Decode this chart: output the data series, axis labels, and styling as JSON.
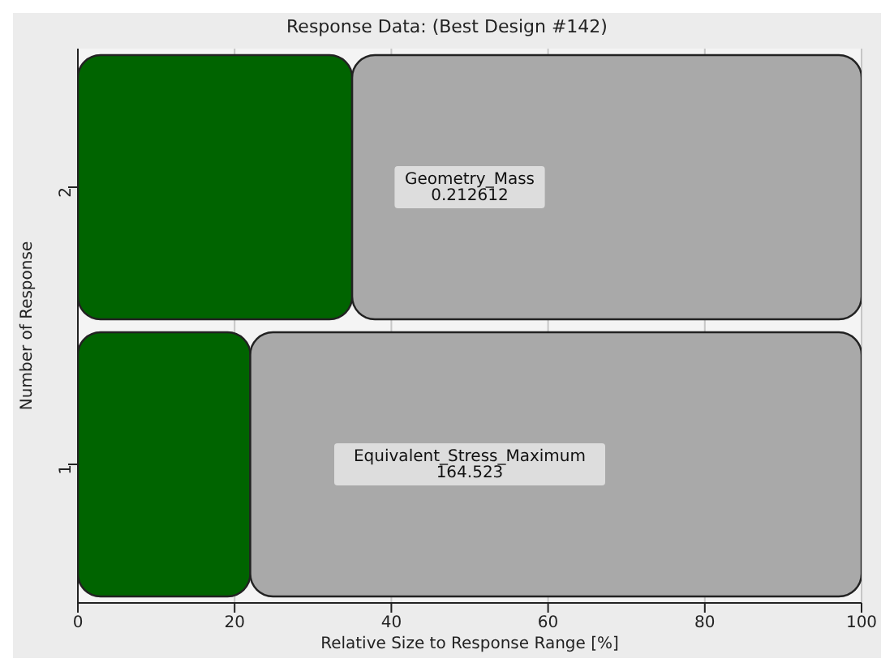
{
  "chart_data": {
    "type": "bar",
    "orientation": "horizontal",
    "stacked": true,
    "title": "Response Data: (Best Design #142)",
    "xlabel": "Relative Size to Response Range [%]",
    "ylabel": "Number of Response",
    "categories": [
      "2",
      "1"
    ],
    "series": [
      {
        "color": "#006400",
        "values": [
          35,
          22
        ]
      },
      {
        "color": "#a9a9a9",
        "values": [
          65,
          78
        ]
      }
    ],
    "xlim": [
      0,
      100
    ],
    "xticks": [
      0,
      20,
      40,
      60,
      80,
      100
    ],
    "grid": "x",
    "legend": false,
    "annotations": [
      "Geometry_Mass\n0.212612",
      "Equivalent_Stress_Maximum\n164.523"
    ]
  }
}
